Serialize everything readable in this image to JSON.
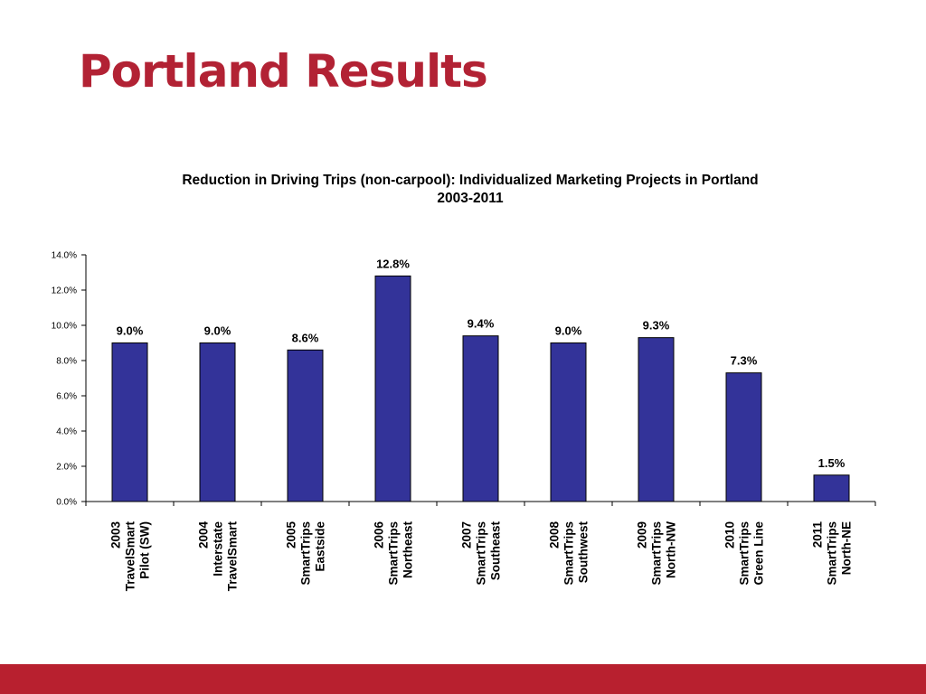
{
  "slide": {
    "title": "Portland Results",
    "accent_color": "#b22234",
    "footer_color": "#b8202f"
  },
  "chart_data": {
    "type": "bar",
    "title": "Reduction in Driving Trips (non-carpool): Individualized Marketing Projects in Portland",
    "subtitle": "2003-2011",
    "xlabel": "",
    "ylabel": "",
    "ylim": [
      0,
      14
    ],
    "yticks": [
      "0.0%",
      "2.0%",
      "4.0%",
      "6.0%",
      "8.0%",
      "10.0%",
      "12.0%",
      "14.0%"
    ],
    "grid": false,
    "legend": "none",
    "bar_color": "#333399",
    "categories": [
      [
        "2003",
        "TravelSmart",
        "Pilot (SW)"
      ],
      [
        "2004",
        "Interstate",
        "TravelSmart"
      ],
      [
        "2005",
        "SmartTrips",
        "Eastside"
      ],
      [
        "2006",
        "SmartTrips",
        "Northeast"
      ],
      [
        "2007",
        "SmartTrips",
        "Southeast"
      ],
      [
        "2008",
        "SmartTrips",
        "Southwest"
      ],
      [
        "2009",
        "SmartTrips",
        "North-NW"
      ],
      [
        "2010",
        "SmartTrips",
        "Green Line"
      ],
      [
        "2011",
        "SmartTrips",
        "North-NE"
      ]
    ],
    "values": [
      9.0,
      9.0,
      8.6,
      12.8,
      9.4,
      9.0,
      9.3,
      7.3,
      1.5
    ],
    "data_labels": [
      "9.0%",
      "9.0%",
      "8.6%",
      "12.8%",
      "9.4%",
      "9.0%",
      "9.3%",
      "7.3%",
      "1.5%"
    ]
  }
}
